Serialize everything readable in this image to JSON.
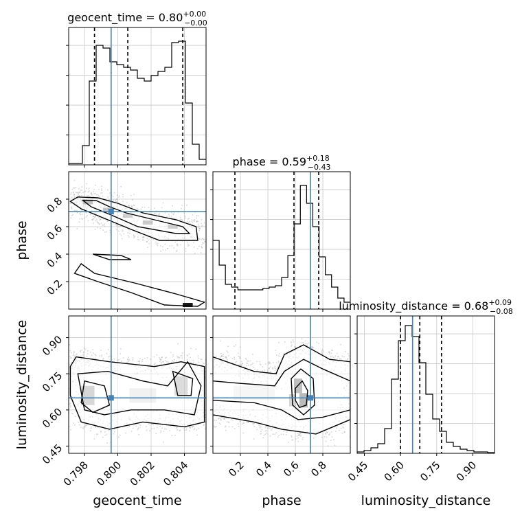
{
  "chart_data": {
    "type": "corner",
    "parameters": [
      "geocent_time",
      "phase",
      "luminosity_distance"
    ],
    "truths": {
      "geocent_time": 0.7996,
      "phase": 0.71,
      "luminosity_distance": 0.65
    },
    "titles": {
      "geocent_time": {
        "label": "geocent_time = 0.80",
        "plus": "+0.00",
        "minus": "−0.00"
      },
      "phase": {
        "label": "phase = 0.59",
        "plus": "+0.18",
        "minus": "−0.43"
      },
      "luminosity_distance": {
        "label": "luminosity_distance = 0.68",
        "plus": "+0.09",
        "minus": "−0.08"
      }
    },
    "axis_labels": {
      "x": [
        "geocent_time",
        "phase",
        "luminosity_distance"
      ],
      "y": [
        "phase",
        "luminosity_distance"
      ]
    },
    "ranges": {
      "geocent_time": [
        0.79705,
        0.8053
      ],
      "phase": [
        0.0,
        1.0
      ],
      "luminosity_distance": [
        0.42,
        0.99
      ]
    },
    "ticks": {
      "geocent_time": [
        {
          "v": 0.798,
          "label": "0.798"
        },
        {
          "v": 0.8,
          "label": "0.800"
        },
        {
          "v": 0.802,
          "label": "0.802"
        },
        {
          "v": 0.804,
          "label": "0.804"
        }
      ],
      "phase": [
        {
          "v": 0.2,
          "label": "0.2"
        },
        {
          "v": 0.4,
          "label": "0.4"
        },
        {
          "v": 0.6,
          "label": "0.6"
        },
        {
          "v": 0.8,
          "label": "0.8"
        }
      ],
      "luminosity_distance": [
        {
          "v": 0.45,
          "label": "0.45"
        },
        {
          "v": 0.6,
          "label": "0.60"
        },
        {
          "v": 0.75,
          "label": "0.75"
        },
        {
          "v": 0.9,
          "label": "0.90"
        }
      ]
    },
    "quantiles": {
      "geocent_time": [
        0.7986,
        0.8006,
        0.8039
      ],
      "phase": [
        0.16,
        0.59,
        0.77
      ],
      "luminosity_distance": [
        0.6,
        0.68,
        0.77
      ]
    },
    "hist1d": {
      "geocent_time": [
        0.01,
        0.01,
        0.14,
        0.61,
        0.87,
        0.85,
        0.75,
        0.73,
        0.71,
        0.69,
        0.63,
        0.61,
        0.65,
        0.68,
        0.71,
        0.89,
        0.9,
        0.45,
        0.15,
        0.04
      ],
      "phase": [
        0.5,
        0.32,
        0.18,
        0.16,
        0.14,
        0.14,
        0.14,
        0.14,
        0.15,
        0.16,
        0.17,
        0.23,
        0.39,
        0.62,
        0.9,
        0.77,
        0.6,
        0.38,
        0.25,
        0.16,
        0.08,
        0.05
      ],
      "luminosity_distance": [
        0.01,
        0.02,
        0.04,
        0.07,
        0.18,
        0.54,
        0.82,
        0.93,
        0.85,
        0.66,
        0.43,
        0.25,
        0.16,
        0.08,
        0.05,
        0.03,
        0.02,
        0.01,
        0.01,
        0.005
      ]
    },
    "contour_paths": {
      "phase_vs_geocent_time": [
        [
          [
            0.79715,
            0.784
          ],
          [
            0.7976,
            0.816
          ],
          [
            0.7988,
            0.81
          ],
          [
            0.8,
            0.77
          ],
          [
            0.8015,
            0.7
          ],
          [
            0.8035,
            0.65
          ],
          [
            0.8047,
            0.6
          ],
          [
            0.8048,
            0.5
          ],
          [
            0.8025,
            0.5
          ],
          [
            0.8008,
            0.58
          ],
          [
            0.7992,
            0.66
          ],
          [
            0.7978,
            0.73
          ],
          [
            0.79715,
            0.784
          ]
        ],
        [
          [
            0.7979,
            0.792
          ],
          [
            0.7987,
            0.79
          ],
          [
            0.7995,
            0.745
          ],
          [
            0.8005,
            0.7
          ],
          [
            0.8022,
            0.65
          ],
          [
            0.8039,
            0.6
          ],
          [
            0.8043,
            0.55
          ],
          [
            0.8035,
            0.55
          ],
          [
            0.8012,
            0.6
          ],
          [
            0.7997,
            0.68
          ],
          [
            0.7984,
            0.745
          ],
          [
            0.7979,
            0.792
          ]
        ],
        [
          [
            0.7985,
            0.4
          ],
          [
            0.8002,
            0.39
          ],
          [
            0.8008,
            0.36
          ],
          [
            0.7995,
            0.36
          ],
          [
            0.7985,
            0.4
          ]
        ],
        [
          [
            0.7978,
            0.33
          ],
          [
            0.7986,
            0.26
          ],
          [
            0.801,
            0.19
          ],
          [
            0.8035,
            0.11
          ],
          [
            0.8052,
            0.05
          ],
          [
            0.8048,
            0.02
          ],
          [
            0.8028,
            0.03
          ],
          [
            0.8008,
            0.12
          ],
          [
            0.7988,
            0.2
          ],
          [
            0.7974,
            0.26
          ],
          [
            0.7978,
            0.33
          ]
        ]
      ],
      "luminosity_distance_vs_geocent_time": [
        [
          [
            0.79715,
            0.78
          ],
          [
            0.7975,
            0.82
          ],
          [
            0.7995,
            0.8
          ],
          [
            0.8022,
            0.78
          ],
          [
            0.8038,
            0.8
          ],
          [
            0.8052,
            0.78
          ],
          [
            0.8052,
            0.55
          ],
          [
            0.804,
            0.53
          ],
          [
            0.8015,
            0.55
          ],
          [
            0.7995,
            0.52
          ],
          [
            0.7978,
            0.55
          ],
          [
            0.79715,
            0.66
          ],
          [
            0.79715,
            0.78
          ]
        ],
        [
          [
            0.7976,
            0.75
          ],
          [
            0.7994,
            0.76
          ],
          [
            0.8015,
            0.72
          ],
          [
            0.803,
            0.7
          ],
          [
            0.8042,
            0.8
          ],
          [
            0.805,
            0.7
          ],
          [
            0.8046,
            0.58
          ],
          [
            0.8028,
            0.6
          ],
          [
            0.8008,
            0.6
          ],
          [
            0.7992,
            0.58
          ],
          [
            0.798,
            0.6
          ],
          [
            0.7976,
            0.75
          ]
        ],
        [
          [
            0.798,
            0.72
          ],
          [
            0.7992,
            0.7
          ],
          [
            0.7995,
            0.62
          ],
          [
            0.7985,
            0.59
          ],
          [
            0.7978,
            0.63
          ],
          [
            0.798,
            0.72
          ]
        ],
        [
          [
            0.8033,
            0.76
          ],
          [
            0.8045,
            0.73
          ],
          [
            0.8044,
            0.66
          ],
          [
            0.8036,
            0.66
          ],
          [
            0.8033,
            0.76
          ]
        ]
      ],
      "luminosity_distance_vs_phase": [
        [
          [
            0.0,
            0.82
          ],
          [
            0.15,
            0.79
          ],
          [
            0.3,
            0.76
          ],
          [
            0.46,
            0.75
          ],
          [
            0.52,
            0.83
          ],
          [
            0.66,
            0.87
          ],
          [
            0.85,
            0.81
          ],
          [
            1.0,
            0.8
          ],
          [
            1.0,
            0.56
          ],
          [
            0.75,
            0.5
          ],
          [
            0.5,
            0.52
          ],
          [
            0.3,
            0.55
          ],
          [
            0.1,
            0.57
          ],
          [
            0.0,
            0.58
          ]
        ],
        [
          [
            0.0,
            0.72
          ],
          [
            0.2,
            0.71
          ],
          [
            0.45,
            0.7
          ],
          [
            0.52,
            0.76
          ],
          [
            0.66,
            0.81
          ],
          [
            0.8,
            0.77
          ],
          [
            1.0,
            0.72
          ],
          [
            1.0,
            0.6
          ],
          [
            0.8,
            0.57
          ],
          [
            0.62,
            0.56
          ],
          [
            0.5,
            0.6
          ],
          [
            0.3,
            0.63
          ],
          [
            0.0,
            0.64
          ]
        ],
        [
          [
            0.57,
            0.73
          ],
          [
            0.64,
            0.77
          ],
          [
            0.73,
            0.73
          ],
          [
            0.74,
            0.62
          ],
          [
            0.66,
            0.58
          ],
          [
            0.58,
            0.62
          ],
          [
            0.57,
            0.73
          ]
        ],
        [
          [
            0.6,
            0.69
          ],
          [
            0.65,
            0.72
          ],
          [
            0.69,
            0.68
          ],
          [
            0.68,
            0.62
          ],
          [
            0.63,
            0.61
          ],
          [
            0.6,
            0.64
          ],
          [
            0.6,
            0.69
          ]
        ]
      ]
    },
    "density_blobs": {
      "phase_vs_geocent_time": [
        {
          "x": 0.7982,
          "y": 0.78,
          "w": 0.0006,
          "h": 0.035,
          "a": 0.55
        },
        {
          "x": 0.7994,
          "y": 0.72,
          "w": 0.0006,
          "h": 0.035,
          "a": 0.5
        },
        {
          "x": 0.8006,
          "y": 0.68,
          "w": 0.0006,
          "h": 0.03,
          "a": 0.4
        },
        {
          "x": 0.8018,
          "y": 0.63,
          "w": 0.0006,
          "h": 0.03,
          "a": 0.45
        },
        {
          "x": 0.8033,
          "y": 0.6,
          "w": 0.0006,
          "h": 0.03,
          "a": 0.4
        },
        {
          "x": 0.8042,
          "y": 0.03,
          "w": 0.0006,
          "h": 0.03,
          "a": 0.9
        }
      ],
      "luminosity_distance_vs_geocent_time": [
        {
          "x": 0.7982,
          "y": 0.66,
          "w": 0.0008,
          "h": 0.08,
          "a": 0.35
        },
        {
          "x": 0.8038,
          "y": 0.7,
          "w": 0.0008,
          "h": 0.08,
          "a": 0.3
        },
        {
          "x": 0.8015,
          "y": 0.66,
          "w": 0.0016,
          "h": 0.06,
          "a": 0.12
        }
      ],
      "luminosity_distance_vs_phase": [
        {
          "x": 0.62,
          "y": 0.7,
          "w": 0.06,
          "h": 0.06,
          "a": 0.55
        },
        {
          "x": 0.66,
          "y": 0.64,
          "w": 0.06,
          "h": 0.06,
          "a": 0.6
        },
        {
          "x": 0.58,
          "y": 0.64,
          "w": 0.05,
          "h": 0.05,
          "a": 0.35
        },
        {
          "x": 0.3,
          "y": 0.67,
          "w": 0.3,
          "h": 0.06,
          "a": 0.08
        }
      ]
    }
  }
}
